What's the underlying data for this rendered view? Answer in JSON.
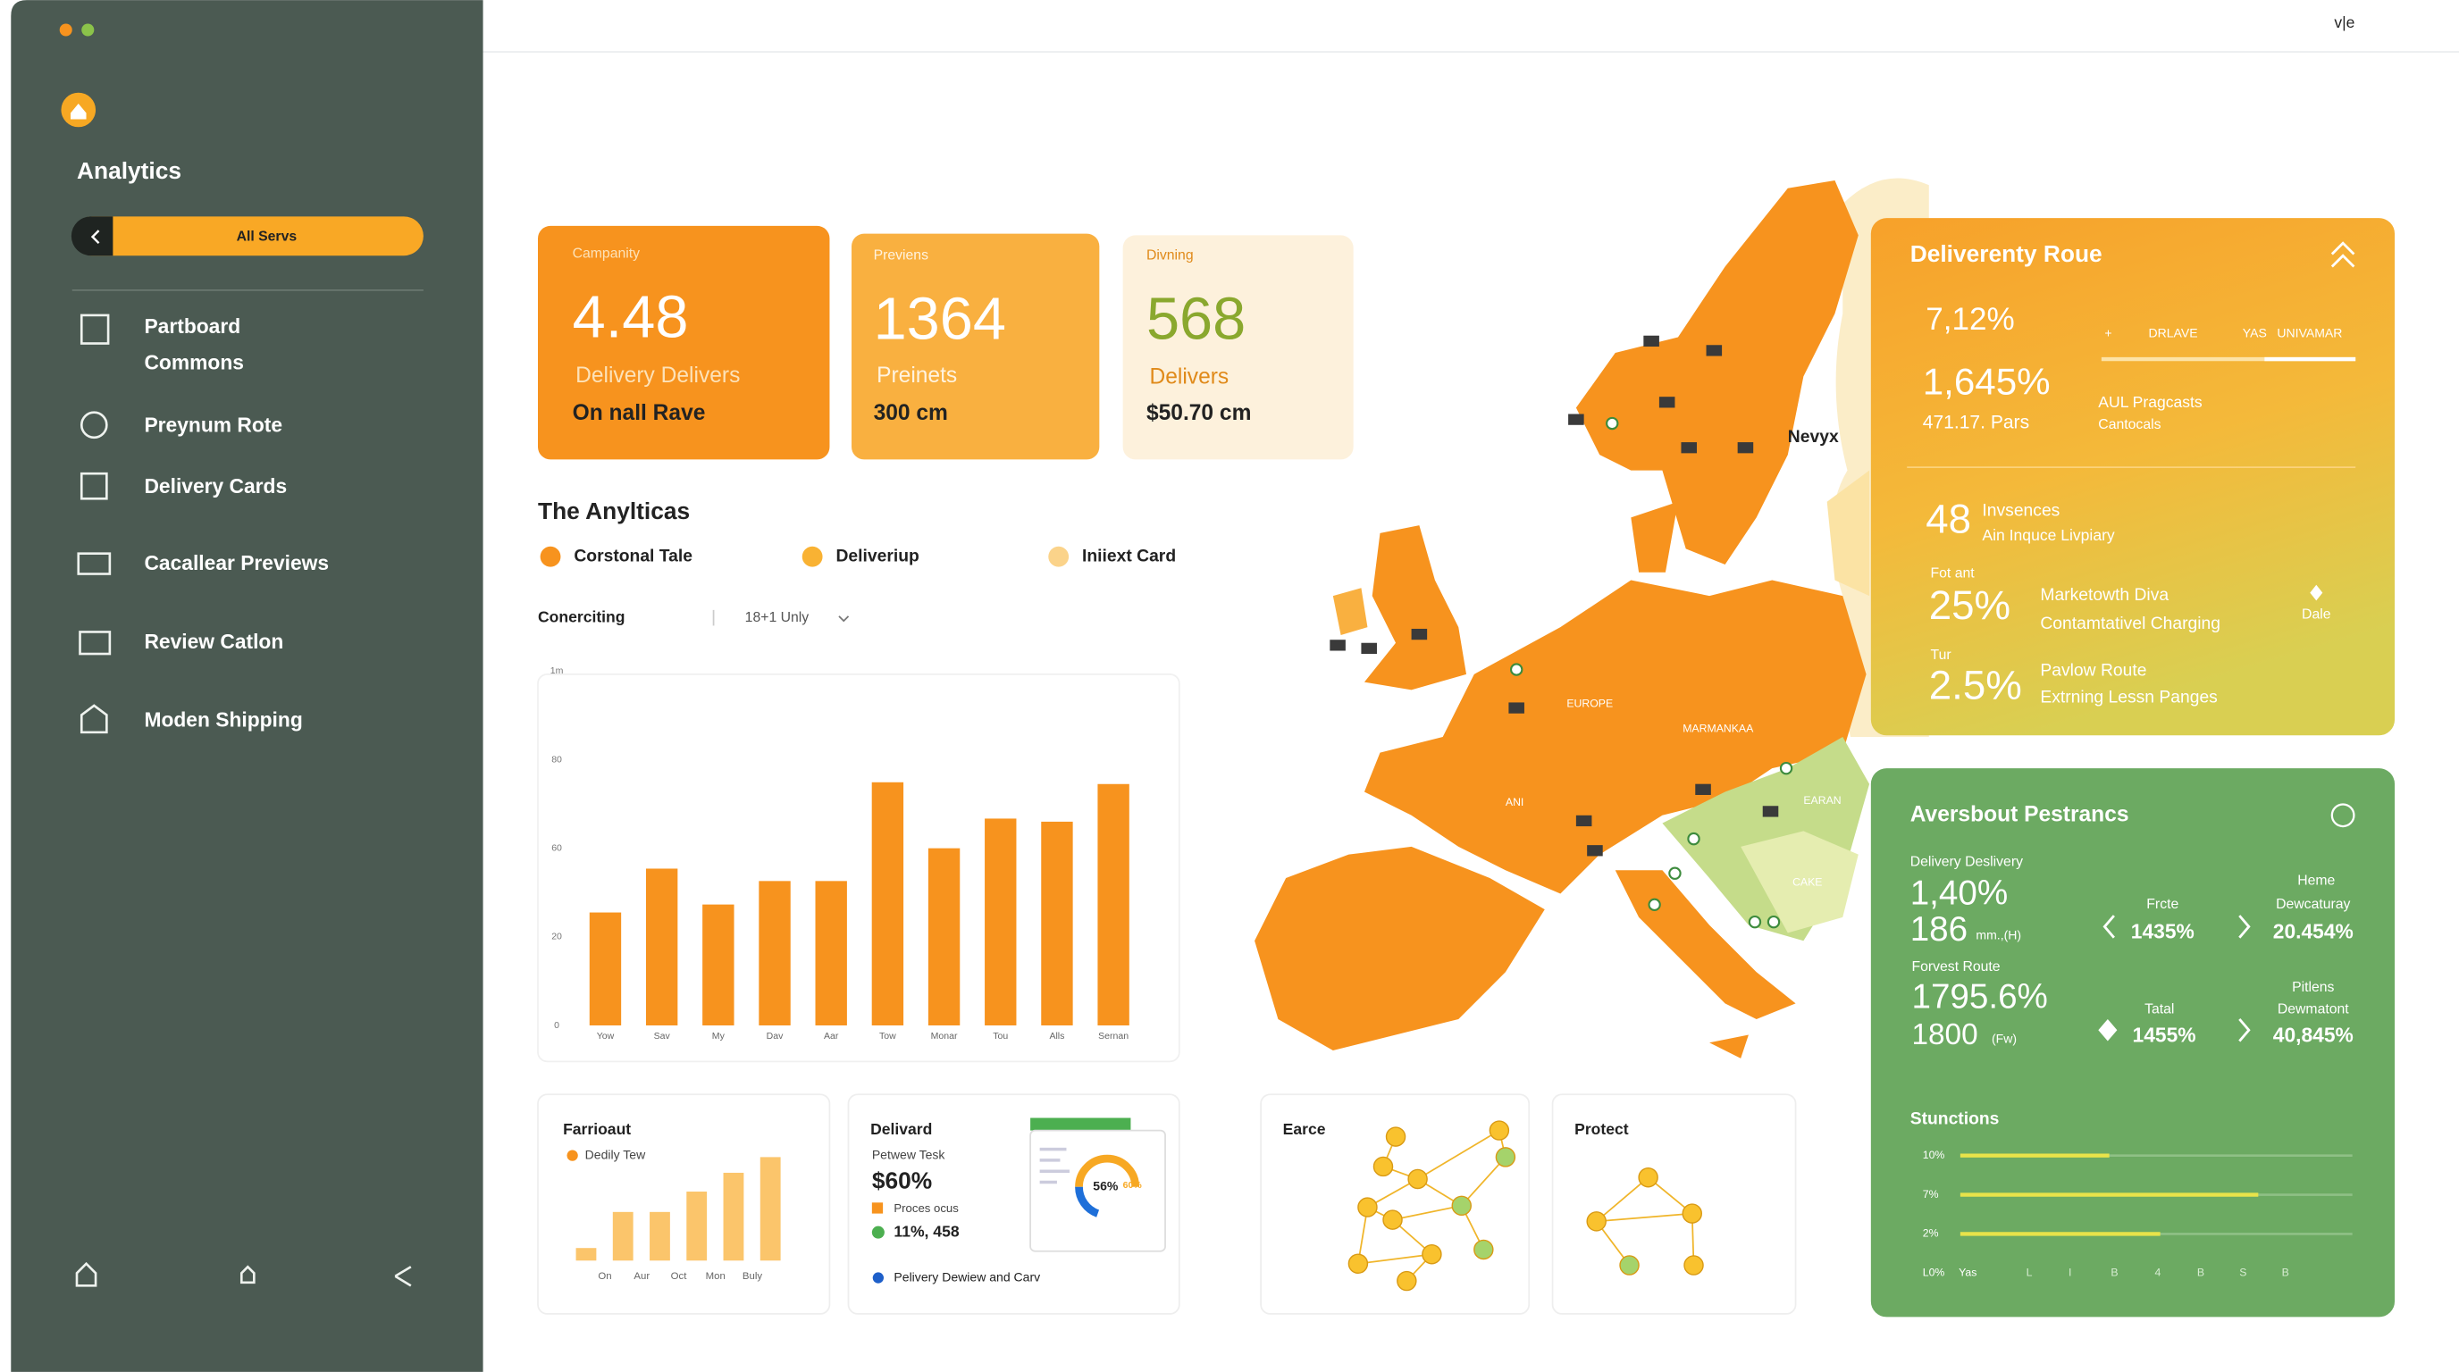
{
  "window": {
    "corner_label": "v|e"
  },
  "sidebar": {
    "title": "Analytics",
    "search": "All Servs",
    "nav": [
      {
        "lines": [
          "Partboard",
          "Commons"
        ]
      },
      {
        "lines": [
          "Preynum Rote"
        ]
      },
      {
        "lines": [
          "Delivery Cards"
        ]
      },
      {
        "lines": [
          "Cacallear Previews"
        ]
      },
      {
        "lines": [
          "Review Catlon"
        ]
      },
      {
        "lines": [
          "Moden Shipping"
        ]
      }
    ]
  },
  "kpis": [
    {
      "label": "Campanity",
      "value": "4.48",
      "caption": "Delivery Delivers",
      "footer": "On nall Rave"
    },
    {
      "label": "Previens",
      "value": "1364",
      "caption": "Preinets",
      "footer": "300 cm"
    },
    {
      "label": "Divning",
      "value": "568",
      "caption": "Delivers",
      "footer": "$50.70 cm"
    }
  ],
  "analytics": {
    "title": "The Anylticas",
    "legend": [
      "Corstonal Tale",
      "Deliveriup",
      "Iniiext Card"
    ],
    "filter_label": "Conerciting",
    "filter_value": "18+1 Unly"
  },
  "chart_data": [
    {
      "type": "bar",
      "categories": [
        "Yow",
        "Sav",
        "My",
        "Dav",
        "Aar",
        "Tow",
        "Monar",
        "Tou",
        "Alls",
        "Sernan"
      ],
      "values": [
        25.5,
        35.4,
        27.3,
        32.6,
        32.6,
        54.9,
        40,
        46.7,
        46,
        54.5
      ],
      "color": "#f7931e",
      "ylim": [
        0,
        80
      ],
      "yticks": [
        0,
        20,
        {
          "value": 40,
          "label": "60"
        },
        {
          "value": 60,
          "label": "80"
        },
        {
          "value": 80,
          "label": "1m"
        }
      ],
      "grid": false
    },
    {
      "type": "bar",
      "title": "Farrioaut",
      "categories": [
        "On",
        "Aur",
        "Oct",
        "Mon",
        "Buly",
        null
      ],
      "series": [
        {
          "name": "Dedily Tew",
          "color": "#fbc56b",
          "values": [
            8,
            31,
            31,
            44,
            56,
            66
          ]
        }
      ]
    }
  ],
  "cards": {
    "delivered": {
      "title": "Delivard",
      "subtitle": "Petwew Tesk",
      "value": "$60%",
      "legend": [
        "Proces ocus",
        "11%, 458"
      ],
      "donut": [
        "56%",
        "60%"
      ],
      "footer": "Pelivery Dewiew and Carv"
    },
    "earce": {
      "title": "Earce"
    },
    "protect": {
      "title": "Protect"
    }
  },
  "map": {
    "labels": [
      "Nevyx",
      "EUROPE",
      "MARMANKAA",
      "ANI",
      "EARAN",
      "CAKE"
    ]
  },
  "route_panel": {
    "title": "Deliverenty Roue",
    "stats": [
      "7,12%",
      "1,645%",
      "471.17. Pars"
    ],
    "columns": [
      "+",
      "DRLAVE",
      "YAS",
      "UNIVAMAR"
    ],
    "note": [
      "AUL Pragcasts",
      "Cantocals"
    ],
    "rows": [
      {
        "value": "48",
        "label": "Invsences",
        "sub": "Ain Inquce Livpiary"
      },
      {
        "caption": "Fot ant",
        "value": "25%",
        "label": "Marketowth Diva",
        "sub": "Contamtativel Charging",
        "tag": "Dale"
      },
      {
        "caption": "Tur",
        "value": "2.5%",
        "label": "Pavlow Route",
        "sub": "Extrning Lessn Panges"
      }
    ]
  },
  "metrics_panel": {
    "title": "Aversbout Pestrancs",
    "a_label": "Delivery Deslivery",
    "a_value": "1,40%",
    "a_count": "186",
    "a_unit": "mm.,(H)",
    "b_label": "Frcte",
    "b_value": "1435%",
    "c_label": [
      "Heme",
      "Dewcaturay"
    ],
    "c_value": "20.454%",
    "d_label": "Forvest Route",
    "d_value": "1795.6%",
    "d_count": "1800",
    "d_unit": "(Fw)",
    "e_label": "Tatal",
    "e_value": "1455%",
    "f_label": [
      "Pitlens",
      "Dewmatont"
    ],
    "f_value": "40,845%"
  },
  "stunctions": {
    "title": "Stunctions",
    "ticks": [
      "10%",
      "7%",
      "2%"
    ],
    "bars": [
      38,
      76,
      51
    ],
    "axis": [
      "L0%",
      "Yas",
      "L",
      "I",
      "B",
      "4",
      "B",
      "S",
      "B"
    ]
  }
}
